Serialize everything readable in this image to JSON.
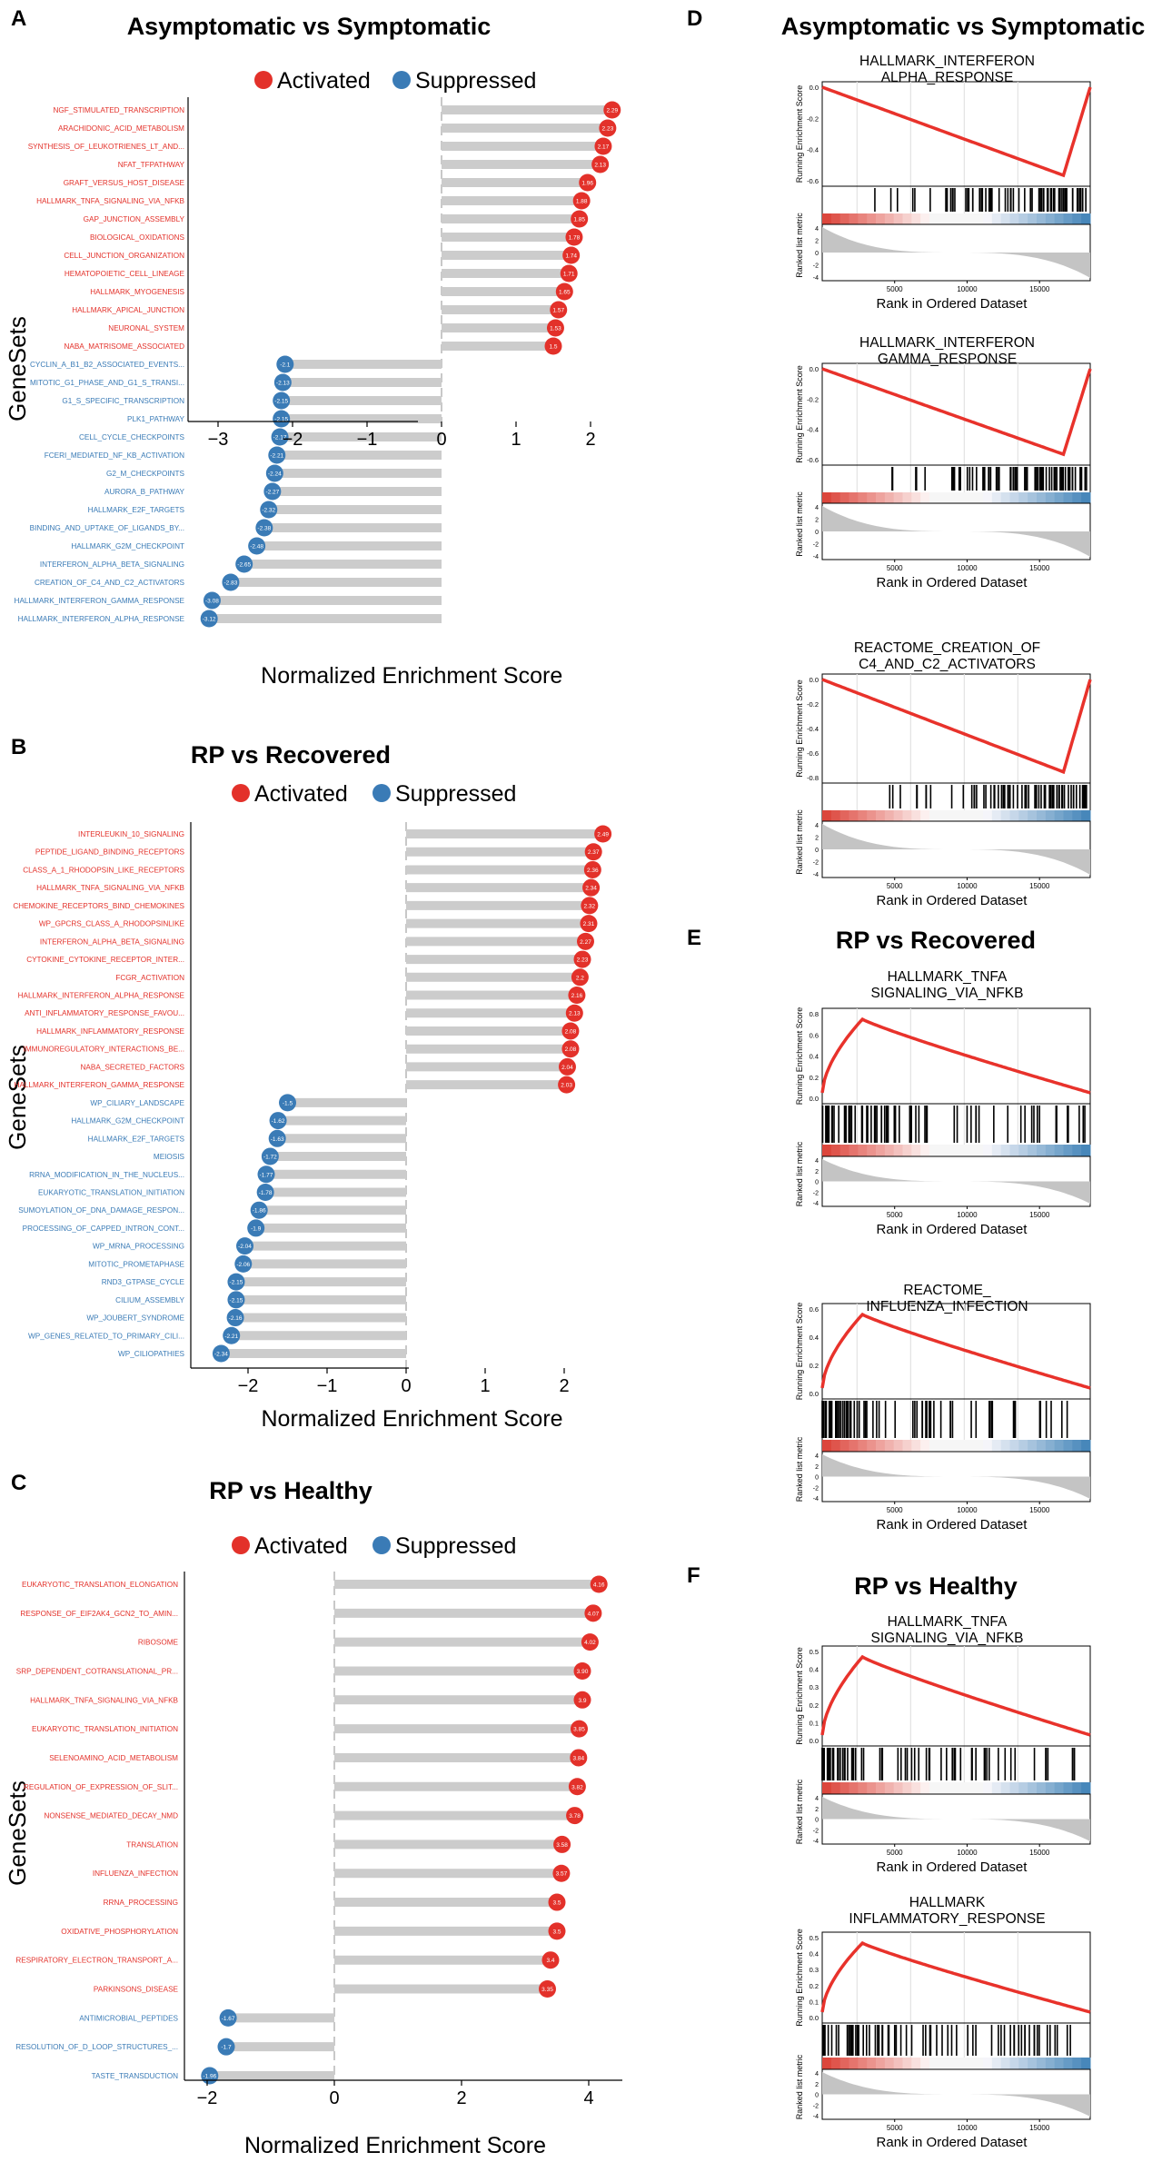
{
  "colors": {
    "activated": "#e3312a",
    "suppressed": "#3a7bb6",
    "bar": "#cccccc",
    "es_line": "#e8322b",
    "hit": "#000000"
  },
  "chart_data": [
    {
      "id": "A",
      "panel_label": "A",
      "type": "bar",
      "subtype": "lollipop",
      "title": "Asymptomatic vs Symptomatic",
      "legend": [
        "Activated",
        "Suppressed"
      ],
      "xlabel": "Normalized Enrichment Score",
      "ylabel": "GeneSets",
      "xlim": [
        -3.3,
        2.5
      ],
      "xticks": [
        -3,
        -2,
        -1,
        0,
        1,
        2
      ],
      "xtick_labels": [
        "−3",
        "−2",
        "−1",
        "0",
        "1",
        "2"
      ],
      "categories": [
        "NGF_STIMULATED_TRANSCRIPTION",
        "ARACHIDONIC_ACID_METABOLISM",
        "SYNTHESIS_OF_LEUKOTRIENES_LT_AND...",
        "NFAT_TFPATHWAY",
        "GRAFT_VERSUS_HOST_DISEASE",
        "HALLMARK_TNFA_SIGNALING_VIA_NFKB",
        "GAP_JUNCTION_ASSEMBLY",
        "BIOLOGICAL_OXIDATIONS",
        "CELL_JUNCTION_ORGANIZATION",
        "HEMATOPOIETIC_CELL_LINEAGE",
        "HALLMARK_MYOGENESIS",
        "HALLMARK_APICAL_JUNCTION",
        "NEURONAL_SYSTEM",
        "NABA_MATRISOME_ASSOCIATED",
        "CYCLIN_A_B1_B2_ASSOCIATED_EVENTS...",
        "MITOTIC_G1_PHASE_AND_G1_S_TRANSI...",
        "G1_S_SPECIFIC_TRANSCRIPTION",
        "PLK1_PATHWAY",
        "CELL_CYCLE_CHECKPOINTS",
        "FCERI_MEDIATED_NF_KB_ACTIVATION",
        "G2_M_CHECKPOINTS",
        "AURORA_B_PATHWAY",
        "HALLMARK_E2F_TARGETS",
        "BINDING_AND_UPTAKE_OF_LIGANDS_BY...",
        "HALLMARK_G2M_CHECKPOINT",
        "INTERFERON_ALPHA_BETA_SIGNALING",
        "CREATION_OF_C4_AND_C2_ACTIVATORS",
        "HALLMARK_INTERFERON_GAMMA_RESPONSE",
        "HALLMARK_INTERFERON_ALPHA_RESPONSE"
      ],
      "values": [
        2.29,
        2.23,
        2.17,
        2.13,
        1.96,
        1.88,
        1.85,
        1.78,
        1.74,
        1.71,
        1.65,
        1.57,
        1.53,
        1.5,
        -2.1,
        -2.13,
        -2.15,
        -2.15,
        -2.17,
        -2.21,
        -2.24,
        -2.27,
        -2.32,
        -2.38,
        -2.48,
        -2.65,
        -2.83,
        -3.08,
        -3.12
      ],
      "value_labels": [
        "2.29",
        "2.23",
        "2.17",
        "2.13",
        "1.96",
        "1.88",
        "1.85",
        "1.78",
        "1.74",
        "1.71",
        "1.65",
        "1.57",
        "1.53",
        "1.5",
        "-2.1",
        "-2.13",
        "-2.15",
        "-2.15",
        "-2.17",
        "-2.21",
        "-2.24",
        "-2.27",
        "-2.32",
        "-2.38",
        "-2.48",
        "-2.65",
        "-2.83",
        "-3.08",
        "-3.12"
      ]
    },
    {
      "id": "B",
      "panel_label": "B",
      "type": "bar",
      "subtype": "lollipop",
      "title": "RP vs Recovered",
      "legend": [
        "Activated",
        "Suppressed"
      ],
      "xlabel": "Normalized Enrichment Score",
      "ylabel": "GeneSets",
      "xlim": [
        -2.45,
        2.6
      ],
      "xticks": [
        -2,
        -1,
        0,
        1,
        2
      ],
      "xtick_labels": [
        "−2",
        "−1",
        "0",
        "1",
        "2"
      ],
      "categories": [
        "INTERLEUKIN_10_SIGNALING",
        "PEPTIDE_LIGAND_BINDING_RECEPTORS",
        "CLASS_A_1_RHODOPSIN_LIKE_RECEPTORS",
        "HALLMARK_TNFA_SIGNALING_VIA_NFKB",
        "CHEMOKINE_RECEPTORS_BIND_CHEMOKINES",
        "WP_GPCRS_CLASS_A_RHODOPSINLIKE",
        "INTERFERON_ALPHA_BETA_SIGNALING",
        "CYTOKINE_CYTOKINE_RECEPTOR_INTER...",
        "FCGR_ACTIVATION",
        "HALLMARK_INTERFERON_ALPHA_RESPONSE",
        "ANTI_INFLAMMATORY_RESPONSE_FAVOU...",
        "HALLMARK_INFLAMMATORY_RESPONSE",
        "IMMUNOREGULATORY_INTERACTIONS_BE...",
        "NABA_SECRETED_FACTORS",
        "HALLMARK_INTERFERON_GAMMA_RESPONSE",
        "WP_CILIARY_LANDSCAPE",
        "HALLMARK_G2M_CHECKPOINT",
        "HALLMARK_E2F_TARGETS",
        "MEIOSIS",
        "RRNA_MODIFICATION_IN_THE_NUCLEUS...",
        "EUKARYOTIC_TRANSLATION_INITIATION",
        "SUMOYLATION_OF_DNA_DAMAGE_RESPON...",
        "PROCESSING_OF_CAPPED_INTRON_CONT...",
        "WP_MRNA_PROCESSING",
        "MITOTIC_PROMETAPHASE",
        "RND3_GTPASE_CYCLE",
        "CILIUM_ASSEMBLY",
        "WP_JOUBERT_SYNDROME",
        "WP_GENES_RELATED_TO_PRIMARY_CILI...",
        "WP_CILIOPATHIES"
      ],
      "values": [
        2.49,
        2.37,
        2.36,
        2.34,
        2.32,
        2.31,
        2.27,
        2.23,
        2.2,
        2.16,
        2.13,
        2.08,
        2.08,
        2.04,
        2.03,
        -1.5,
        -1.62,
        -1.63,
        -1.72,
        -1.77,
        -1.78,
        -1.86,
        -1.9,
        -2.04,
        -2.06,
        -2.15,
        -2.15,
        -2.16,
        -2.21,
        -2.34
      ],
      "value_labels": [
        "2.49",
        "2.37",
        "2.36",
        "2.34",
        "2.32",
        "2.31",
        "2.27",
        "2.23",
        "2.2",
        "2.16",
        "2.13",
        "2.08",
        "2.08",
        "2.04",
        "2.03",
        "-1.5",
        "-1.62",
        "-1.63",
        "-1.72",
        "-1.77",
        "-1.78",
        "-1.86",
        "-1.9",
        "-2.04",
        "-2.06",
        "-2.15",
        "-2.15",
        "-2.16",
        "-2.21",
        "-2.34"
      ]
    },
    {
      "id": "C",
      "panel_label": "C",
      "type": "bar",
      "subtype": "lollipop",
      "title": "RP vs Healthy",
      "legend": [
        "Activated",
        "Suppressed"
      ],
      "xlabel": "Normalized Enrichment Score",
      "ylabel": "GeneSets",
      "xlim": [
        -2.3,
        4.5
      ],
      "xticks": [
        -2,
        0,
        2,
        4
      ],
      "xtick_labels": [
        "−2",
        "0",
        "2",
        "4"
      ],
      "categories": [
        "EUKARYOTIC_TRANSLATION_ELONGATION",
        "RESPONSE_OF_EIF2AK4_GCN2_TO_AMIN...",
        "RIBOSOME",
        "SRP_DEPENDENT_COTRANSLATIONAL_PR...",
        "HALLMARK_TNFA_SIGNALING_VIA_NFKB",
        "EUKARYOTIC_TRANSLATION_INITIATION",
        "SELENOAMINO_ACID_METABOLISM",
        "REGULATION_OF_EXPRESSION_OF_SLIT...",
        "NONSENSE_MEDIATED_DECAY_NMD",
        "TRANSLATION",
        "INFLUENZA_INFECTION",
        "RRNA_PROCESSING",
        "OXIDATIVE_PHOSPHORYLATION",
        "RESPIRATORY_ELECTRON_TRANSPORT_A...",
        "PARKINSONS_DISEASE",
        "ANTIMICROBIAL_PEPTIDES",
        "RESOLUTION_OF_D_LOOP_STRUCTURES_...",
        "TASTE_TRANSDUCTION"
      ],
      "values": [
        4.16,
        4.07,
        4.02,
        3.9,
        3.9,
        3.85,
        3.84,
        3.82,
        3.78,
        3.58,
        3.57,
        3.5,
        3.5,
        3.4,
        3.35,
        -1.67,
        -1.7,
        -1.96
      ],
      "value_labels": [
        "4.16",
        "4.07",
        "4.02",
        "3.90",
        "3.9",
        "3.85",
        "3.84",
        "3.82",
        "3.78",
        "3.58",
        "3.57",
        "3.5",
        "3.5",
        "3.4",
        "3.35",
        "-1.67",
        "-1.7",
        "-1.96"
      ]
    },
    {
      "id": "D",
      "panel_label": "D",
      "type": "line",
      "subtype": "gsea_plot_group",
      "title": "Asymptomatic vs Symptomatic",
      "plots": [
        {
          "geneset": [
            "HALLMARK_INTERFERON",
            "ALPHA_RESPONSE"
          ],
          "direction": "neg",
          "min_es": -0.65,
          "es_yticks": [
            "0.0",
            "-0.2",
            "-0.4",
            "-0.6"
          ]
        },
        {
          "geneset": [
            "HALLMARK_INTERFERON",
            "GAMMA_RESPONSE"
          ],
          "direction": "neg",
          "min_es": -0.6,
          "es_yticks": [
            "0.0",
            "-0.2",
            "-0.4",
            "-0.6"
          ]
        },
        {
          "geneset": [
            "REACTOME_CREATION_OF",
            "C4_AND_C2_ACTIVATORS"
          ],
          "direction": "neg",
          "min_es": -0.85,
          "es_yticks": [
            "0.0",
            "-0.2",
            "-0.4",
            "-0.6",
            "-0.8"
          ]
        }
      ]
    },
    {
      "id": "E",
      "panel_label": "E",
      "type": "line",
      "subtype": "gsea_plot_group",
      "title": "RP vs Recovered",
      "plots": [
        {
          "geneset": [
            "HALLMARK_TNFA",
            "SIGNALING_VIA_NFKB"
          ],
          "direction": "pos",
          "max_es": 0.88,
          "es_yticks": [
            "0.8",
            "0.6",
            "0.4",
            "0.2",
            "0.0"
          ]
        },
        {
          "geneset": [
            "REACTOME_",
            "INFLUENZA_INFECTION"
          ],
          "direction": "pos",
          "max_es": 0.62,
          "es_yticks": [
            "0.6",
            "0.4",
            "0.2",
            "0.0"
          ]
        }
      ]
    },
    {
      "id": "F",
      "panel_label": "F",
      "type": "line",
      "subtype": "gsea_plot_group",
      "title": "RP vs Healthy",
      "plots": [
        {
          "geneset": [
            "HALLMARK_TNFA",
            "SIGNALING_VIA_NFKB"
          ],
          "direction": "pos",
          "max_es": 0.57,
          "es_yticks": [
            "0.5",
            "0.4",
            "0.3",
            "0.2",
            "0.1",
            "0.0"
          ]
        },
        {
          "geneset": [
            "HALLMARK",
            "INFLAMMATORY_RESPONSE"
          ],
          "direction": "pos",
          "max_es": 0.52,
          "es_yticks": [
            "0.5",
            "0.4",
            "0.3",
            "0.2",
            "0.1",
            "0.0"
          ]
        }
      ]
    }
  ],
  "gsea_common": {
    "y_label_top": "Running Enrichment Score",
    "y_label_bottom": "Ranked list metric",
    "x_label": "Rank in Ordered Dataset",
    "x_ticks": [
      5000,
      10000,
      15000
    ],
    "x_tick_labels": [
      "5000",
      "10000",
      "15000"
    ],
    "x_max": 18500,
    "metric_yticks": [
      "4",
      "2",
      "0",
      "-2",
      "-4"
    ]
  }
}
